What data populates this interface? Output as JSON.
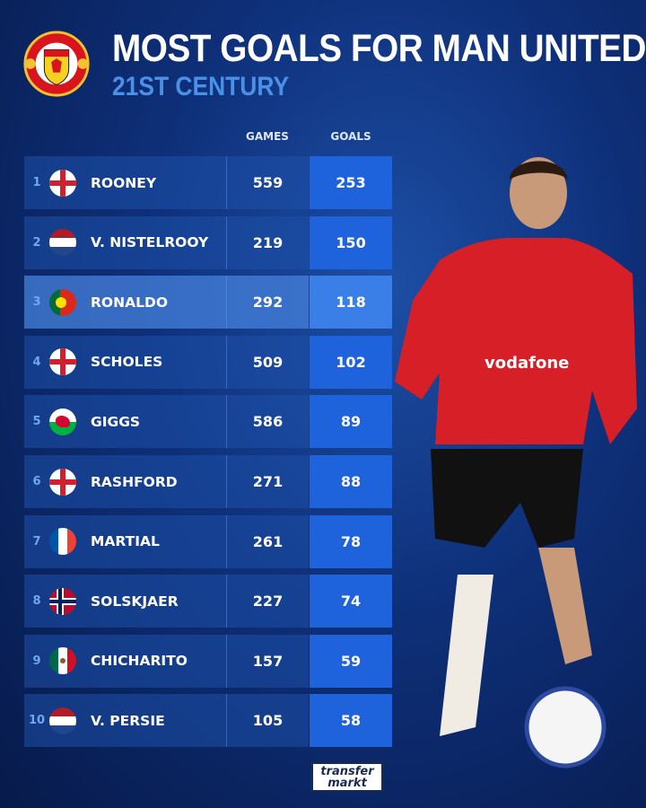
{
  "header": {
    "title": "MOST GOALS FOR MAN UNITED",
    "subtitle": "21ST CENTURY",
    "logo_text": "MANCHESTER UNITED"
  },
  "columns": {
    "games": "GAMES",
    "goals": "GOALS"
  },
  "rows": [
    {
      "rank": "1",
      "flag": "england",
      "name": "ROONEY",
      "games": "559",
      "goals": "253"
    },
    {
      "rank": "2",
      "flag": "netherlands",
      "name": "V. NISTELROOY",
      "games": "219",
      "goals": "150"
    },
    {
      "rank": "3",
      "flag": "portugal",
      "name": "RONALDO",
      "games": "292",
      "goals": "118",
      "highlighted": true
    },
    {
      "rank": "4",
      "flag": "england",
      "name": "SCHOLES",
      "games": "509",
      "goals": "102"
    },
    {
      "rank": "5",
      "flag": "wales",
      "name": "GIGGS",
      "games": "586",
      "goals": "89"
    },
    {
      "rank": "6",
      "flag": "england",
      "name": "RASHFORD",
      "games": "271",
      "goals": "88"
    },
    {
      "rank": "7",
      "flag": "france",
      "name": "MARTIAL",
      "games": "261",
      "goals": "78"
    },
    {
      "rank": "8",
      "flag": "norway",
      "name": "SOLSKJAER",
      "games": "227",
      "goals": "74"
    },
    {
      "rank": "9",
      "flag": "mexico",
      "name": "CHICHARITO",
      "games": "157",
      "goals": "59"
    },
    {
      "rank": "10",
      "flag": "netherlands",
      "name": "V. PERSIE",
      "games": "105",
      "goals": "58"
    }
  ],
  "footer": {
    "brand_line1": "transfer",
    "brand_line2": "markt"
  },
  "colors": {
    "accent": "#4a90e8",
    "goals_cell": "#1f63dc",
    "background": "#0e2f78"
  }
}
